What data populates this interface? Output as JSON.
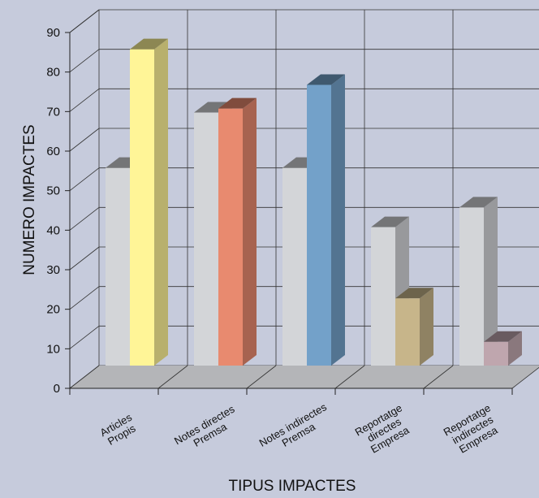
{
  "chart_data": {
    "type": "bar",
    "title": "",
    "xlabel": "TIPUS IMPACTES",
    "ylabel": "NUMERO IMPACTES",
    "ylim": [
      0,
      90
    ],
    "yticks": [
      "0",
      "10",
      "20",
      "30",
      "40",
      "50",
      "60",
      "70",
      "80",
      "90"
    ],
    "grid": true,
    "legend": "none",
    "categories": [
      [
        "Articles",
        "Propis"
      ],
      [
        "Notes directes",
        "Premsa"
      ],
      [
        "Notes indirectes",
        "Premsa"
      ],
      [
        "Reportatge",
        "directes",
        "Empresa"
      ],
      [
        "Reportatge",
        "indirectes",
        "Empresa"
      ]
    ],
    "series": [
      {
        "values": [
          50,
          64,
          50,
          35,
          40
        ],
        "color": "#d3d5d8"
      },
      {
        "values": [
          80,
          65,
          71,
          17,
          6
        ],
        "colors": [
          "#fff597",
          "#e88a6f",
          "#73a1c9",
          "#c7b58a",
          "#bfa6ae"
        ]
      }
    ]
  }
}
